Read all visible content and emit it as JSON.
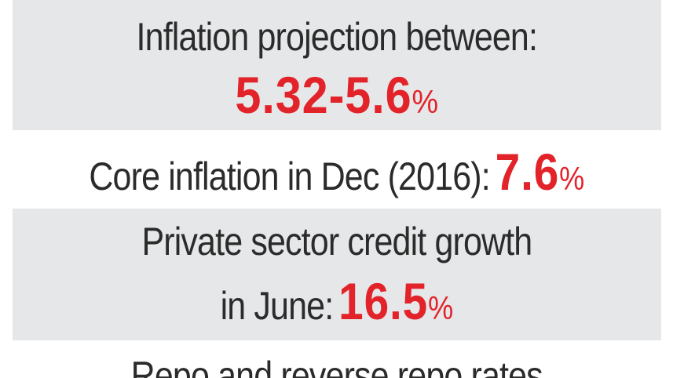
{
  "rows": [
    {
      "label": "Inflation projection between:",
      "value": "5.32-5.6",
      "unit": "%"
    },
    {
      "label": "Core inflation in Dec (2016):",
      "value": "7.6",
      "unit": "%"
    },
    {
      "label_line1": "Private sector credit growth",
      "label_line2": "in June:",
      "value": "16.5",
      "unit": "%"
    },
    {
      "label": "Repo and reverse repo rates"
    }
  ],
  "colors": {
    "accent_red": "#e2232a",
    "text_dark": "#2b2b2b",
    "band_grey": "#e6e7e9"
  }
}
